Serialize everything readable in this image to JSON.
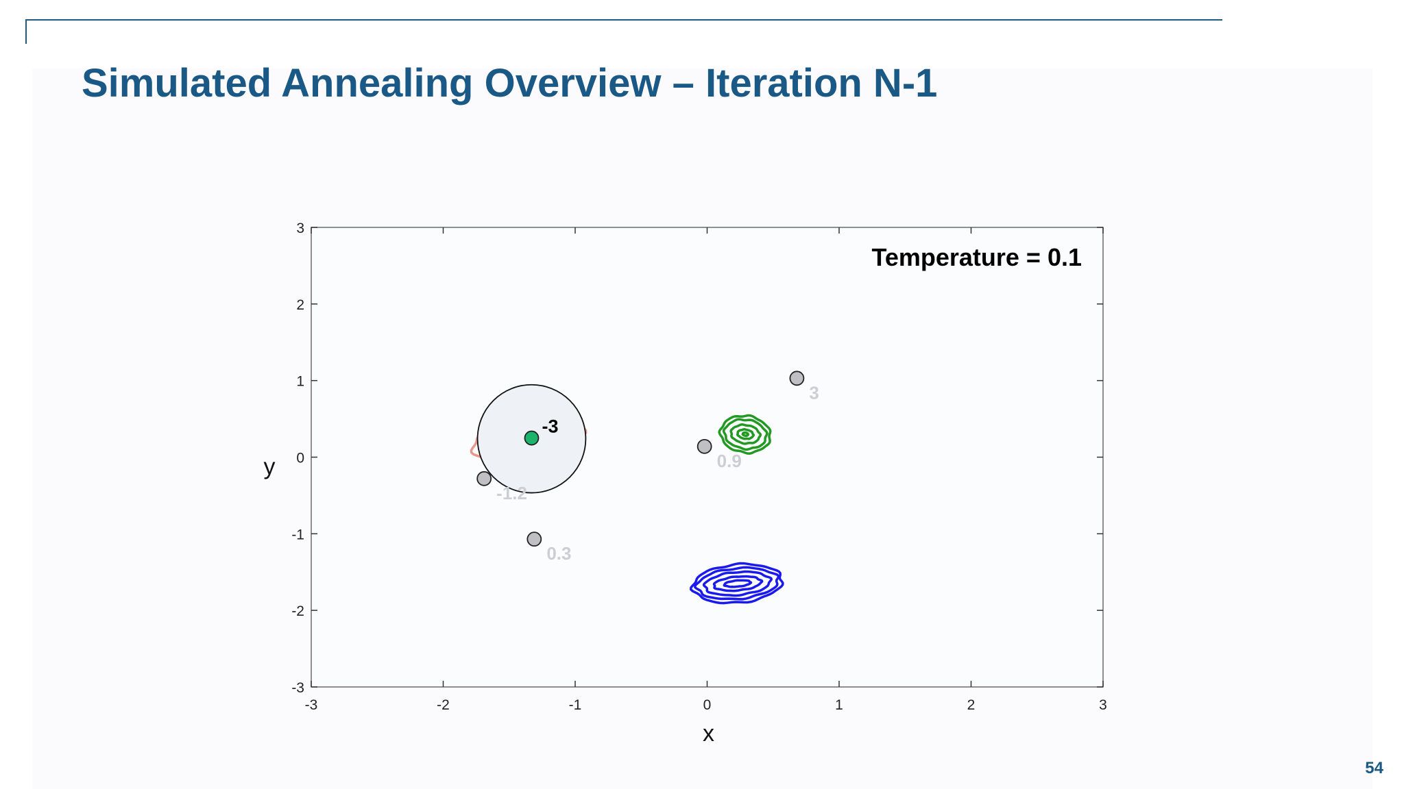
{
  "slide": {
    "title": "Simulated Annealing Overview – Iteration N-1",
    "page_number": "54"
  },
  "chart_data": {
    "type": "scatter",
    "title": "",
    "xlabel": "x",
    "ylabel": "y",
    "xlim": [
      -3,
      3
    ],
    "ylim": [
      -3,
      3
    ],
    "xticks": [
      -3,
      -2,
      -1,
      0,
      1,
      2,
      3
    ],
    "yticks": [
      -3,
      -2,
      -1,
      0,
      1,
      2,
      3
    ],
    "grid": false,
    "annotation": "Temperature = 0.1",
    "colors": {
      "background": "#fbfcfd",
      "axis": "#333333",
      "contour_red": "#e8978c",
      "contour_green": "#229922",
      "contour_blue": "#1a1aee",
      "point_gray": "#c0c0c4",
      "point_current": "#1cb36a",
      "label_faded": "#cdcdd4",
      "label_current": "#000000"
    },
    "contours": [
      {
        "name": "red",
        "color": "#e8978c",
        "cx": -1.35,
        "cy": 0.25,
        "rx": [
          0.03,
          0.13,
          0.23,
          0.33,
          0.43
        ],
        "ry": [
          0.03,
          0.11,
          0.18,
          0.25,
          0.32
        ],
        "rotation": -12
      },
      {
        "name": "green",
        "color": "#229922",
        "cx": 0.29,
        "cy": 0.3,
        "rx": [
          0.02,
          0.06,
          0.11,
          0.16,
          0.19
        ],
        "ry": [
          0.02,
          0.06,
          0.12,
          0.19,
          0.24
        ],
        "rotation": 8
      },
      {
        "name": "blue",
        "color": "#1a1aee",
        "cx": 0.23,
        "cy": -1.65,
        "rx": [
          0.1,
          0.18,
          0.25,
          0.31,
          0.34
        ],
        "ry": [
          0.04,
          0.09,
          0.15,
          0.2,
          0.25
        ],
        "rotation": -5
      }
    ],
    "neighborhood": {
      "cx": -1.33,
      "cy": 0.24,
      "r": 0.41
    },
    "points": [
      {
        "x": -1.33,
        "y": 0.25,
        "label": "-3",
        "current": true
      },
      {
        "x": -1.69,
        "y": -0.28,
        "label": "-1.2",
        "current": false
      },
      {
        "x": -1.31,
        "y": -1.07,
        "label": "0.3",
        "current": false
      },
      {
        "x": -0.02,
        "y": 0.14,
        "label": "0.9",
        "current": false
      },
      {
        "x": 0.68,
        "y": 1.03,
        "label": "3",
        "current": false
      }
    ]
  }
}
